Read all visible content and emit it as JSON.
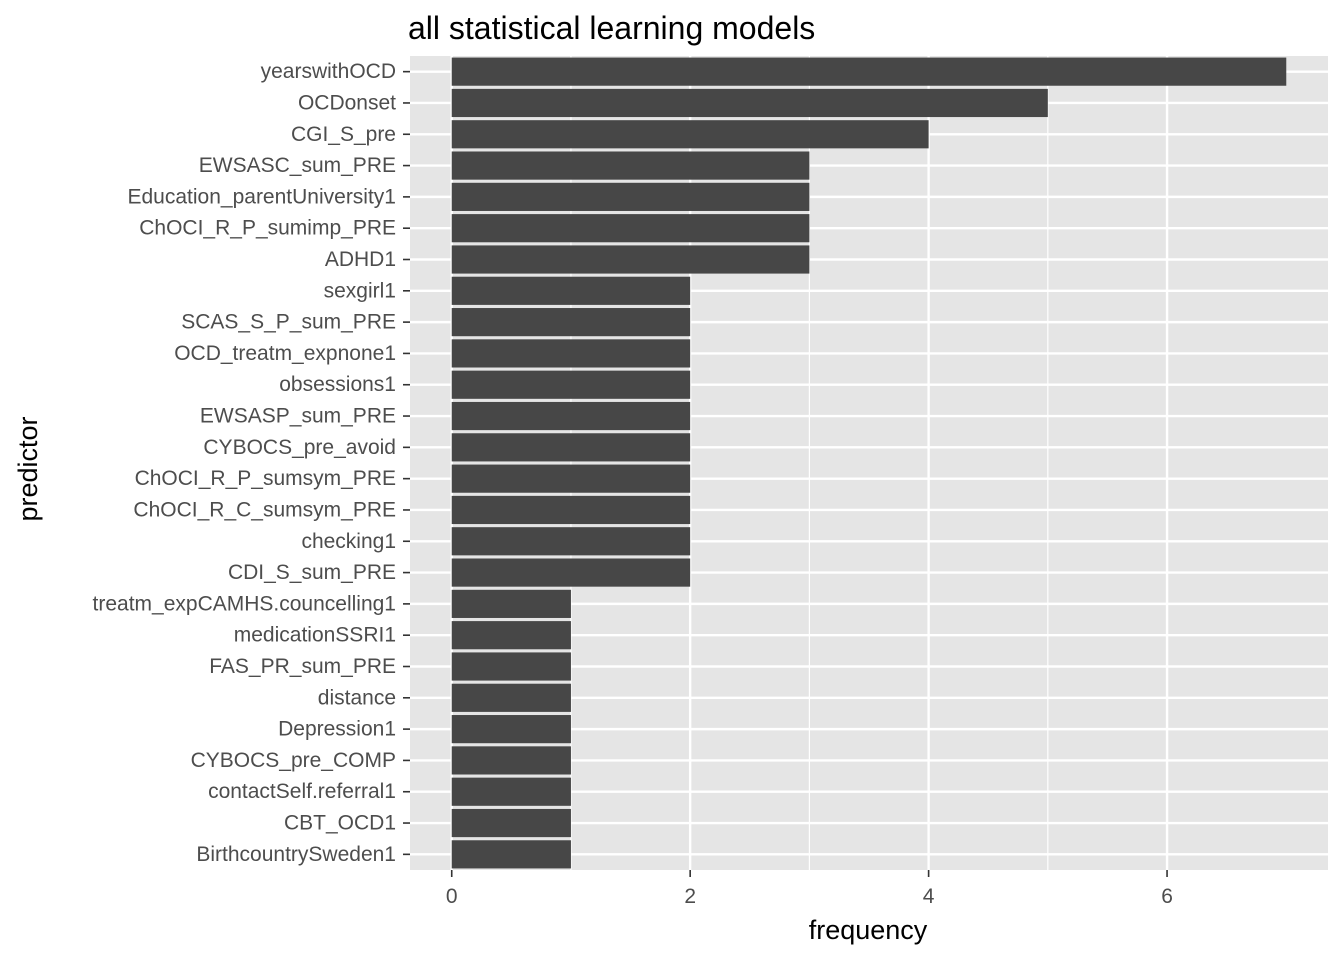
{
  "chart_data": {
    "type": "bar",
    "orientation": "horizontal",
    "title": "all statistical learning models",
    "xlabel": "frequency",
    "ylabel": "predictor",
    "xlim": [
      -0.35,
      7.35
    ],
    "xticks": [
      0,
      2,
      4,
      6
    ],
    "grid": true,
    "legend": "none",
    "colors": {
      "bar": "#474747",
      "panel": "#e5e5e5",
      "grid": "#ffffff",
      "tick_label": "#4d4d4d"
    },
    "categories": [
      "yearswithOCD",
      "OCDonset",
      "CGI_S_pre",
      "EWSASC_sum_PRE",
      "Education_parentUniversity1",
      "ChOCI_R_P_sumimp_PRE",
      "ADHD1",
      "sexgirl1",
      "SCAS_S_P_sum_PRE",
      "OCD_treatm_expnone1",
      "obsessions1",
      "EWSASP_sum_PRE",
      "CYBOCS_pre_avoid",
      "ChOCI_R_P_sumsym_PRE",
      "ChOCI_R_C_sumsym_PRE",
      "checking1",
      "CDI_S_sum_PRE",
      "treatm_expCAMHS.councelling1",
      "medicationSSRI1",
      "FAS_PR_sum_PRE",
      "distance",
      "Depression1",
      "CYBOCS_pre_COMP",
      "contactSelf.referral1",
      "CBT_OCD1",
      "BirthcountrySweden1"
    ],
    "values": [
      7,
      5,
      4,
      3,
      3,
      3,
      3,
      2,
      2,
      2,
      2,
      2,
      2,
      2,
      2,
      2,
      2,
      1,
      1,
      1,
      1,
      1,
      1,
      1,
      1,
      1
    ]
  }
}
